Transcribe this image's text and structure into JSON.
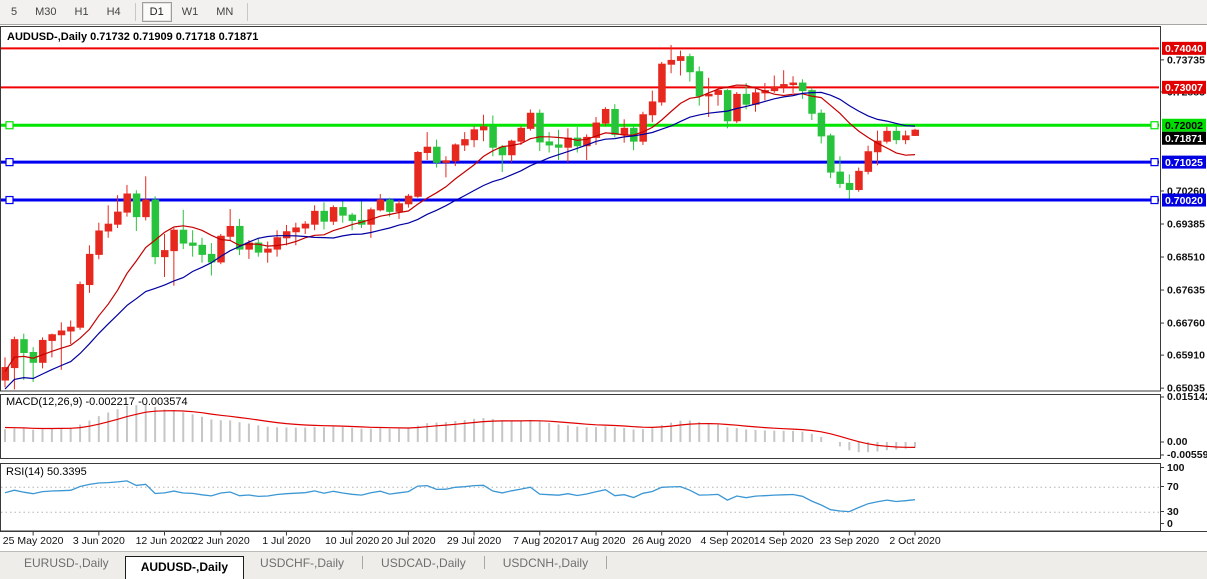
{
  "toolbar": {
    "timeframes": [
      "5",
      "M30",
      "H1",
      "H4",
      "D1",
      "W1",
      "MN"
    ],
    "active_timeframe": "D1"
  },
  "title_bar": {
    "symbol": "AUDUSD-,Daily",
    "open": "0.71732",
    "high": "0.71909",
    "low": "0.71718",
    "close": "0.71871"
  },
  "indicators": {
    "macd": {
      "label": "MACD(12,26,9)",
      "value_main": "-0.002217",
      "value_signal": "-0.003574",
      "axis_max_label": "0.015142",
      "axis_zero_label": "0.00",
      "axis_min_label": "-0.005595",
      "fast_period": 12,
      "slow_period": 26,
      "signal_period": 9,
      "histogram_color": "#c6c6c6",
      "signal_color": "#e00000"
    },
    "rsi": {
      "label": "RSI(14)",
      "value": "50.3395",
      "period": 14,
      "axis_labels": [
        "100",
        "70",
        "30",
        "0"
      ],
      "levels": [
        70,
        30
      ],
      "line_color": "#3c97d4"
    }
  },
  "price_axis": {
    "ticks": [
      "0.73735",
      "0.72885",
      "0.70260",
      "0.69385",
      "0.68510",
      "0.67635",
      "0.66760",
      "0.65910",
      "0.65035"
    ],
    "badges": [
      {
        "text": "0.74040",
        "price": 0.7404,
        "bg": "#e00000",
        "fg": "#ffffff"
      },
      {
        "text": "0.73007",
        "price": 0.73007,
        "bg": "#e00000",
        "fg": "#ffffff"
      },
      {
        "text": "0.72002",
        "price": 0.72002,
        "bg": "#00dd00",
        "fg": "#000000"
      },
      {
        "text": "0.71025",
        "price": 0.71025,
        "bg": "#0000e0",
        "fg": "#ffffff"
      },
      {
        "text": "0.70020",
        "price": 0.7002,
        "bg": "#0000e0",
        "fg": "#ffffff"
      }
    ],
    "current_badge": {
      "text": "0.71871",
      "price": 0.71871,
      "bg": "#000000",
      "fg": "#ffffff"
    }
  },
  "time_axis": {
    "labels": [
      {
        "text": "25 May 2020",
        "index": 3
      },
      {
        "text": "3 Jun 2020",
        "index": 10
      },
      {
        "text": "12 Jun 2020",
        "index": 17
      },
      {
        "text": "22 Jun 2020",
        "index": 23
      },
      {
        "text": "1 Jul 2020",
        "index": 30
      },
      {
        "text": "10 Jul 2020",
        "index": 37
      },
      {
        "text": "20 Jul 2020",
        "index": 43
      },
      {
        "text": "29 Jul 2020",
        "index": 50
      },
      {
        "text": "7 Aug 2020",
        "index": 57
      },
      {
        "text": "17 Aug 2020",
        "index": 63
      },
      {
        "text": "26 Aug 2020",
        "index": 70
      },
      {
        "text": "4 Sep 2020",
        "index": 77
      },
      {
        "text": "14 Sep 2020",
        "index": 83
      },
      {
        "text": "23 Sep 2020",
        "index": 90
      },
      {
        "text": "2 Oct 2020",
        "index": 97
      }
    ]
  },
  "tabs": {
    "items": [
      {
        "label": "EURUSD-,Daily",
        "active": false
      },
      {
        "label": "AUDUSD-,Daily",
        "active": true
      },
      {
        "label": "USDCHF-,Daily",
        "active": false
      },
      {
        "label": "USDCAD-,Daily",
        "active": false
      },
      {
        "label": "USDCNH-,Daily",
        "active": false
      }
    ]
  },
  "chart_data": {
    "type": "candlestick",
    "symbol": "AUDUSD-",
    "timeframe": "Daily",
    "grid": false,
    "price_axis_range": [
      0.6499,
      0.7458
    ],
    "macd_axis_range": [
      -0.005595,
      0.015142
    ],
    "rsi_axis_range": [
      0,
      100
    ],
    "bull_color": "#e6281e",
    "bear_color": "#28c33c",
    "ma_fast": {
      "period": 10,
      "color": "#c40000"
    },
    "ma_slow": {
      "period": 20,
      "color": "#0000a0"
    },
    "horizontal_lines": [
      {
        "price": 0.7404,
        "color": "#f20000",
        "width": 2,
        "selected": false
      },
      {
        "price": 0.73007,
        "color": "#f20000",
        "width": 2,
        "selected": false
      },
      {
        "price": 0.72002,
        "color": "#00e600",
        "width": 3,
        "selected": true
      },
      {
        "price": 0.71025,
        "color": "#0000f0",
        "width": 3,
        "selected": true
      },
      {
        "price": 0.7002,
        "color": "#0000f0",
        "width": 3,
        "selected": true
      }
    ],
    "candles": [
      [
        "20 May 2020",
        0.6525,
        0.6585,
        0.6506,
        0.6558
      ],
      [
        "21 May 2020",
        0.6558,
        0.664,
        0.65,
        0.6632
      ],
      [
        "22 May 2020",
        0.6632,
        0.6648,
        0.6525,
        0.6598
      ],
      [
        "25 May 2020",
        0.6598,
        0.6612,
        0.652,
        0.6572
      ],
      [
        "26 May 2020",
        0.6572,
        0.6638,
        0.6556,
        0.663
      ],
      [
        "27 May 2020",
        0.663,
        0.6648,
        0.6585,
        0.6645
      ],
      [
        "28 May 2020",
        0.6645,
        0.6678,
        0.6552,
        0.6655
      ],
      [
        "29 May 2020",
        0.6655,
        0.6683,
        0.662,
        0.6665
      ],
      [
        "1 Jun 2020",
        0.6665,
        0.6786,
        0.6658,
        0.6778
      ],
      [
        "2 Jun 2020",
        0.6778,
        0.6882,
        0.6756,
        0.6858
      ],
      [
        "3 Jun 2020",
        0.6858,
        0.6942,
        0.6845,
        0.692
      ],
      [
        "4 Jun 2020",
        0.692,
        0.6988,
        0.6902,
        0.6938
      ],
      [
        "5 Jun 2020",
        0.6938,
        0.7015,
        0.6928,
        0.697
      ],
      [
        "8 Jun 2020",
        0.697,
        0.7042,
        0.6958,
        0.7018
      ],
      [
        "9 Jun 2020",
        0.7018,
        0.7028,
        0.692,
        0.6958
      ],
      [
        "10 Jun 2020",
        0.6958,
        0.7065,
        0.6948,
        0.7002
      ],
      [
        "11 Jun 2020",
        0.7002,
        0.7012,
        0.6832,
        0.6852
      ],
      [
        "12 Jun 2020",
        0.6852,
        0.6912,
        0.6798,
        0.6868
      ],
      [
        "15 Jun 2020",
        0.6868,
        0.6928,
        0.6775,
        0.6922
      ],
      [
        "16 Jun 2020",
        0.6922,
        0.6976,
        0.6872,
        0.6888
      ],
      [
        "17 Jun 2020",
        0.6888,
        0.6922,
        0.6852,
        0.6882
      ],
      [
        "18 Jun 2020",
        0.6882,
        0.6902,
        0.6836,
        0.6858
      ],
      [
        "19 Jun 2020",
        0.6858,
        0.6888,
        0.6802,
        0.6838
      ],
      [
        "22 Jun 2020",
        0.6838,
        0.6912,
        0.6832,
        0.6906
      ],
      [
        "23 Jun 2020",
        0.6906,
        0.6978,
        0.6896,
        0.6932
      ],
      [
        "24 Jun 2020",
        0.6932,
        0.6952,
        0.6856,
        0.6872
      ],
      [
        "25 Jun 2020",
        0.6872,
        0.6896,
        0.6846,
        0.6888
      ],
      [
        "26 Jun 2020",
        0.6888,
        0.6902,
        0.6852,
        0.6864
      ],
      [
        "29 Jun 2020",
        0.6864,
        0.6892,
        0.6836,
        0.6872
      ],
      [
        "30 Jun 2020",
        0.6872,
        0.6922,
        0.6852,
        0.6902
      ],
      [
        "1 Jul 2020",
        0.6902,
        0.6936,
        0.6882,
        0.6918
      ],
      [
        "2 Jul 2020",
        0.6918,
        0.6942,
        0.6882,
        0.6928
      ],
      [
        "3 Jul 2020",
        0.6928,
        0.6946,
        0.6912,
        0.6938
      ],
      [
        "6 Jul 2020",
        0.6938,
        0.6988,
        0.6922,
        0.6972
      ],
      [
        "7 Jul 2020",
        0.6972,
        0.6996,
        0.6924,
        0.6946
      ],
      [
        "8 Jul 2020",
        0.6946,
        0.6988,
        0.6936,
        0.6982
      ],
      [
        "9 Jul 2020",
        0.6982,
        0.6998,
        0.6942,
        0.6962
      ],
      [
        "10 Jul 2020",
        0.6962,
        0.6968,
        0.6922,
        0.6948
      ],
      [
        "13 Jul 2020",
        0.6948,
        0.6998,
        0.6928,
        0.6938
      ],
      [
        "14 Jul 2020",
        0.6938,
        0.6982,
        0.6902,
        0.6976
      ],
      [
        "15 Jul 2020",
        0.6976,
        0.7018,
        0.6972,
        0.7002
      ],
      [
        "16 Jul 2020",
        0.7002,
        0.7008,
        0.6958,
        0.6972
      ],
      [
        "17 Jul 2020",
        0.6972,
        0.7002,
        0.6952,
        0.6992
      ],
      [
        "20 Jul 2020",
        0.6992,
        0.7018,
        0.6982,
        0.7012
      ],
      [
        "21 Jul 2020",
        0.7012,
        0.7132,
        0.7008,
        0.7128
      ],
      [
        "22 Jul 2020",
        0.7128,
        0.7182,
        0.7108,
        0.7142
      ],
      [
        "23 Jul 2020",
        0.7142,
        0.7162,
        0.7088,
        0.7102
      ],
      [
        "24 Jul 2020",
        0.7102,
        0.7118,
        0.7062,
        0.7106
      ],
      [
        "27 Jul 2020",
        0.7106,
        0.7152,
        0.7092,
        0.7148
      ],
      [
        "28 Jul 2020",
        0.7148,
        0.7182,
        0.7132,
        0.7162
      ],
      [
        "29 Jul 2020",
        0.7162,
        0.7198,
        0.7142,
        0.7188
      ],
      [
        "30 Jul 2020",
        0.7188,
        0.7228,
        0.7158,
        0.7196
      ],
      [
        "31 Jul 2020",
        0.7196,
        0.7226,
        0.7118,
        0.7142
      ],
      [
        "3 Aug 2020",
        0.7142,
        0.7148,
        0.7076,
        0.7122
      ],
      [
        "4 Aug 2020",
        0.7122,
        0.7162,
        0.7102,
        0.7158
      ],
      [
        "5 Aug 2020",
        0.7158,
        0.7198,
        0.7148,
        0.7192
      ],
      [
        "6 Aug 2020",
        0.7192,
        0.7242,
        0.7186,
        0.7232
      ],
      [
        "7 Aug 2020",
        0.7232,
        0.7242,
        0.7132,
        0.7156
      ],
      [
        "10 Aug 2020",
        0.7156,
        0.7182,
        0.7128,
        0.7148
      ],
      [
        "11 Aug 2020",
        0.7148,
        0.7188,
        0.7108,
        0.7142
      ],
      [
        "12 Aug 2020",
        0.7142,
        0.7192,
        0.7102,
        0.7166
      ],
      [
        "13 Aug 2020",
        0.7166,
        0.7196,
        0.7128,
        0.7146
      ],
      [
        "14 Aug 2020",
        0.7146,
        0.7176,
        0.7108,
        0.7168
      ],
      [
        "17 Aug 2020",
        0.7168,
        0.7222,
        0.7148,
        0.7206
      ],
      [
        "18 Aug 2020",
        0.7206,
        0.7248,
        0.7198,
        0.7242
      ],
      [
        "19 Aug 2020",
        0.7242,
        0.7256,
        0.7168,
        0.7176
      ],
      [
        "20 Aug 2020",
        0.7176,
        0.7216,
        0.7154,
        0.7192
      ],
      [
        "21 Aug 2020",
        0.7192,
        0.7202,
        0.7134,
        0.7158
      ],
      [
        "24 Aug 2020",
        0.7158,
        0.7236,
        0.7148,
        0.7228
      ],
      [
        "25 Aug 2020",
        0.7228,
        0.7292,
        0.7208,
        0.7262
      ],
      [
        "26 Aug 2020",
        0.7262,
        0.7368,
        0.7252,
        0.7362
      ],
      [
        "27 Aug 2020",
        0.7362,
        0.7413,
        0.7338,
        0.7372
      ],
      [
        "28 Aug 2020",
        0.7372,
        0.7398,
        0.7332,
        0.7382
      ],
      [
        "31 Aug 2020",
        0.7382,
        0.739,
        0.7316,
        0.7342
      ],
      [
        "1 Sep 2020",
        0.7342,
        0.7356,
        0.7252,
        0.7278
      ],
      [
        "2 Sep 2020",
        0.7278,
        0.7326,
        0.7222,
        0.7282
      ],
      [
        "3 Sep 2020",
        0.7282,
        0.7302,
        0.7252,
        0.7292
      ],
      [
        "4 Sep 2020",
        0.7292,
        0.7296,
        0.7192,
        0.7212
      ],
      [
        "7 Sep 2020",
        0.7212,
        0.7288,
        0.7206,
        0.7282
      ],
      [
        "8 Sep 2020",
        0.7282,
        0.7312,
        0.7242,
        0.7256
      ],
      [
        "9 Sep 2020",
        0.7256,
        0.7296,
        0.7236,
        0.7286
      ],
      [
        "10 Sep 2020",
        0.7286,
        0.7312,
        0.7266,
        0.7292
      ],
      [
        "11 Sep 2020",
        0.7292,
        0.7332,
        0.7286,
        0.7302
      ],
      [
        "14 Sep 2020",
        0.7302,
        0.7346,
        0.7286,
        0.7308
      ],
      [
        "15 Sep 2020",
        0.7308,
        0.733,
        0.7286,
        0.7312
      ],
      [
        "16 Sep 2020",
        0.7312,
        0.7322,
        0.727,
        0.7292
      ],
      [
        "17 Sep 2020",
        0.7292,
        0.73,
        0.7214,
        0.7232
      ],
      [
        "18 Sep 2020",
        0.7232,
        0.7242,
        0.7152,
        0.7172
      ],
      [
        "21 Sep 2020",
        0.7172,
        0.7178,
        0.706,
        0.7076
      ],
      [
        "22 Sep 2020",
        0.7076,
        0.7118,
        0.7034,
        0.7046
      ],
      [
        "23 Sep 2020",
        0.7046,
        0.707,
        0.7006,
        0.703
      ],
      [
        "24 Sep 2020",
        0.703,
        0.7088,
        0.7024,
        0.7078
      ],
      [
        "25 Sep 2020",
        0.7078,
        0.7146,
        0.707,
        0.713
      ],
      [
        "28 Sep 2020",
        0.713,
        0.7186,
        0.7094,
        0.7158
      ],
      [
        "29 Sep 2020",
        0.7158,
        0.7196,
        0.7152,
        0.7184
      ],
      [
        "30 Sep 2020",
        0.7184,
        0.7198,
        0.715,
        0.7162
      ],
      [
        "1 Oct 2020",
        0.7162,
        0.7186,
        0.715,
        0.7172
      ],
      [
        "2 Oct 2020",
        0.71732,
        0.71909,
        0.71718,
        0.71871
      ]
    ]
  }
}
